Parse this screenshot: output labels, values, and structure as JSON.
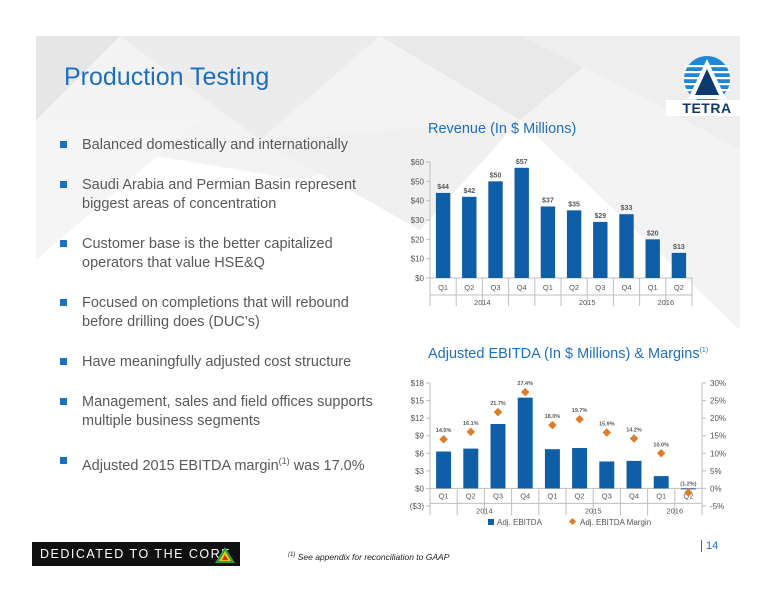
{
  "slide": {
    "title": "Production Testing",
    "logo_text": "TETRA",
    "bullets": [
      {
        "text": "Balanced domestically and internationally"
      },
      {
        "text": "Saudi Arabia and Permian Basin represent biggest areas of concentration"
      },
      {
        "text": "Customer base is the better capitalized operators that value HSE&Q"
      },
      {
        "text": "Focused on completions that will rebound before drilling does (DUC’s)"
      },
      {
        "text": "Have meaningfully adjusted cost structure"
      },
      {
        "text": "Management, sales and field offices supports multiple business segments"
      },
      {
        "text_before": "Adjusted 2015 EBITDA margin",
        "sup": "(1)",
        "text_after": " was 17.0%"
      }
    ],
    "banner_text": "DEDICATED TO THE CORE",
    "footnote_mark": "(1)",
    "footnote_text": " See appendix for reconciliation to GAAP",
    "page_number": "14",
    "accent_color": "#1f6fbf",
    "bar_color": "#0e5fa8",
    "marker_color": "#e07b28"
  },
  "chart_data": [
    {
      "type": "bar",
      "title": "Revenue (In $ Millions)",
      "categories": [
        "Q1",
        "Q2",
        "Q3",
        "Q4",
        "Q1",
        "Q2",
        "Q3",
        "Q4",
        "Q1",
        "Q2"
      ],
      "year_groups": [
        {
          "label": "2014",
          "start": 0,
          "end": 3
        },
        {
          "label": "2015",
          "start": 4,
          "end": 7
        },
        {
          "label": "2016",
          "start": 8,
          "end": 9
        }
      ],
      "values": [
        44,
        42,
        50,
        57,
        37,
        35,
        29,
        33,
        20,
        13
      ],
      "value_labels": [
        "$44",
        "$42",
        "$50",
        "$57",
        "$37",
        "$35",
        "$29",
        "$33",
        "$20",
        "$13"
      ],
      "y_ticks": [
        0,
        10,
        20,
        30,
        40,
        50,
        60
      ],
      "y_tick_labels": [
        "$0",
        "$10",
        "$20",
        "$30",
        "$40",
        "$50",
        "$60"
      ],
      "ylim": [
        0,
        60
      ],
      "grid": false
    },
    {
      "type": "bar",
      "title": "Adjusted EBITDA (In $ Millions) & Margins",
      "title_sup": "(1)",
      "categories": [
        "Q1",
        "Q2",
        "Q3",
        "Q4",
        "Q1",
        "Q2",
        "Q3",
        "Q4",
        "Q1",
        "Q2"
      ],
      "year_groups": [
        {
          "label": "2014",
          "start": 0,
          "end": 3
        },
        {
          "label": "2015",
          "start": 4,
          "end": 7
        },
        {
          "label": "2016",
          "start": 8,
          "end": 9
        }
      ],
      "series": [
        {
          "name": "Adj. EBITDA",
          "type": "bar",
          "axis": "left",
          "values": [
            6.3,
            6.8,
            11.0,
            15.5,
            6.7,
            6.9,
            4.6,
            4.7,
            2.1,
            -0.16
          ]
        },
        {
          "name": "Adj. EBITDA Margin",
          "type": "scatter",
          "axis": "right",
          "values": [
            14.0,
            16.1,
            21.7,
            27.4,
            18.0,
            19.7,
            15.9,
            14.2,
            10.0,
            -1.2
          ],
          "value_labels": [
            "14.0%",
            "16.1%",
            "21.7%",
            "27.4%",
            "18.0%",
            "19.7%",
            "15.9%",
            "14.2%",
            "10.0%",
            "(1.2%)"
          ]
        }
      ],
      "y_left_ticks": [
        -3,
        0,
        3,
        6,
        9,
        12,
        15,
        18
      ],
      "y_left_tick_labels": [
        "($3)",
        "$0",
        "$3",
        "$6",
        "$9",
        "$12",
        "$15",
        "$18"
      ],
      "ylim_left": [
        -3,
        18
      ],
      "y_right_ticks": [
        -5,
        0,
        5,
        10,
        15,
        20,
        25,
        30
      ],
      "y_right_tick_labels": [
        "-5%",
        "0%",
        "5%",
        "10%",
        "15%",
        "20%",
        "25%",
        "30%"
      ],
      "ylim_right": [
        -5,
        30
      ],
      "legend": "bottom",
      "grid": false
    }
  ]
}
